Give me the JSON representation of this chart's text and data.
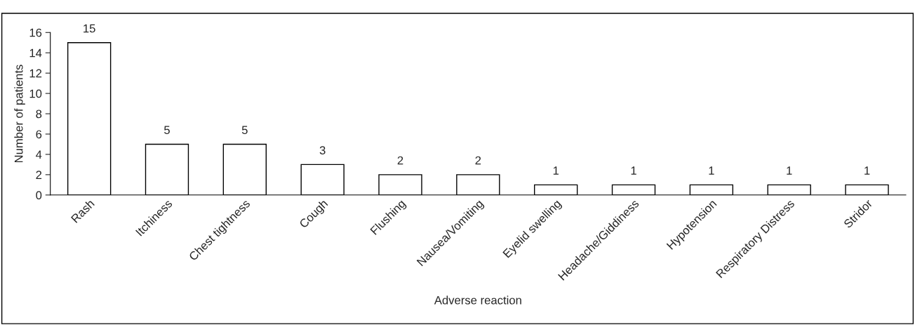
{
  "chart_data": {
    "type": "bar",
    "categories": [
      "Rash",
      "Itchiness",
      "Chest tightness",
      "Cough",
      "Flushing",
      "Nausea/Vomiting",
      "Eyelid swelling",
      "Headache/Giddiness",
      "Hypotension",
      "Respiratory Distress",
      "Stridor"
    ],
    "values": [
      15,
      5,
      5,
      3,
      2,
      2,
      1,
      1,
      1,
      1,
      1
    ],
    "color": "#ffffff",
    "xlabel": "Adverse reaction",
    "ylabel": "Number of patients",
    "ylim": [
      0,
      16
    ],
    "yticks": [
      0,
      2,
      4,
      6,
      8,
      10,
      12,
      14,
      16
    ],
    "data_labels": true,
    "grid": false,
    "legend": false
  }
}
